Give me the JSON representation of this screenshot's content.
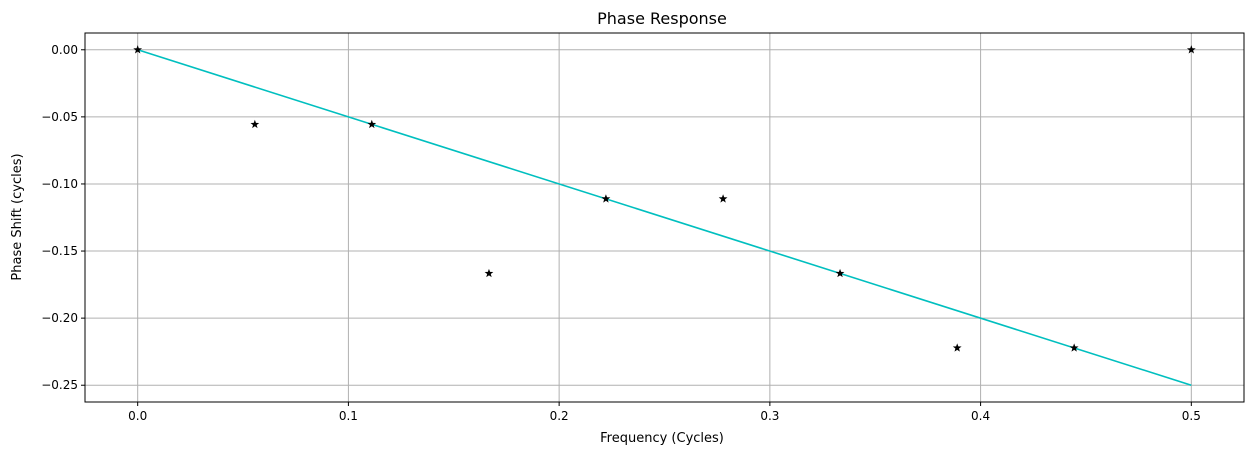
{
  "chart_data": {
    "type": "line",
    "title": "Phase Response",
    "xlabel": "Frequency (Cycles)",
    "ylabel": "Phase Shift (cycles)",
    "xlim": [
      -0.025,
      0.525
    ],
    "ylim": [
      -0.2625,
      0.0125
    ],
    "xticks": [
      0.0,
      0.1,
      0.2,
      0.3,
      0.4,
      0.5
    ],
    "xtick_labels": [
      "0.0",
      "0.1",
      "0.2",
      "0.3",
      "0.4",
      "0.5"
    ],
    "yticks": [
      0.0,
      -0.05,
      -0.1,
      -0.15,
      -0.2,
      -0.25
    ],
    "ytick_labels": [
      "0.00",
      "−0.05",
      "−0.10",
      "−0.15",
      "−0.20",
      "−0.25"
    ],
    "grid": true,
    "series": [
      {
        "kind": "line",
        "color": "#00bfbf",
        "x": [
          0.0,
          0.5
        ],
        "y": [
          0.0,
          -0.25
        ]
      },
      {
        "kind": "scatter",
        "marker": "star",
        "color": "#000000",
        "x": [
          0.0,
          0.0556,
          0.1111,
          0.1667,
          0.2222,
          0.2778,
          0.3333,
          0.3889,
          0.4444,
          0.5
        ],
        "y": [
          0.0,
          -0.0556,
          -0.0556,
          -0.1667,
          -0.1111,
          -0.1111,
          -0.1667,
          -0.2222,
          -0.2222,
          0.0
        ]
      }
    ],
    "colors": {
      "grid": "#b0b0b0",
      "axes": "#000000"
    }
  }
}
